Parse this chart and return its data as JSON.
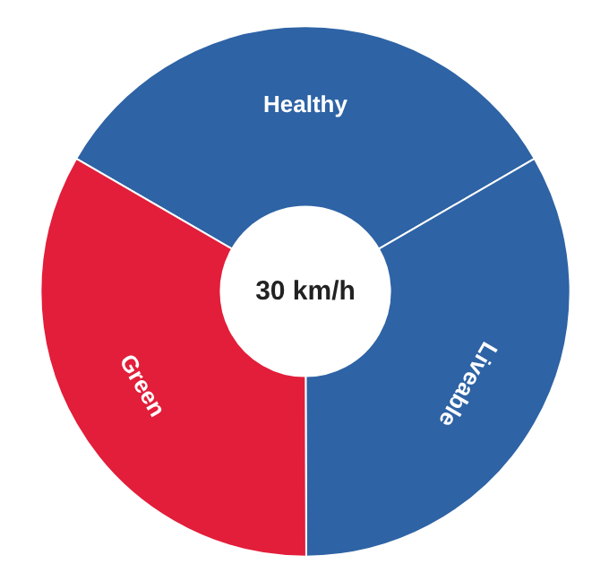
{
  "chart_data": {
    "type": "donut",
    "categories": [
      "Healthy",
      "Liveable",
      "Green"
    ],
    "values": [
      33.3,
      33.3,
      33.4
    ],
    "colors": [
      "#2e63a5",
      "#2e63a5",
      "#e21e3a"
    ],
    "annotations": [
      "30 km/h"
    ]
  }
}
